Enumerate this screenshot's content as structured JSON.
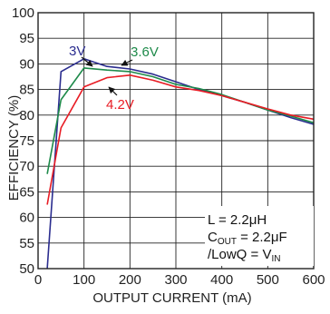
{
  "chart_data": {
    "type": "line",
    "xlabel": "OUTPUT CURRENT (mA)",
    "ylabel": "EFFICIENCY (%)",
    "xlim": [
      0,
      600
    ],
    "ylim": [
      50,
      100
    ],
    "xticks": [
      "0",
      "100",
      "200",
      "300",
      "400",
      "500",
      "600"
    ],
    "xtick_values": [
      0,
      100,
      200,
      300,
      400,
      500,
      600
    ],
    "yticks": [
      "50",
      "55",
      "60",
      "65",
      "70",
      "75",
      "80",
      "85",
      "90",
      "95",
      "100"
    ],
    "ytick_values": [
      50,
      55,
      60,
      65,
      70,
      75,
      80,
      85,
      90,
      95,
      100
    ],
    "grid": true,
    "series": [
      {
        "name": "3V",
        "color": "#2b2d8f",
        "points": [
          [
            20,
            50
          ],
          [
            50,
            88.5
          ],
          [
            100,
            91
          ],
          [
            150,
            89.5
          ],
          [
            200,
            89
          ],
          [
            250,
            88
          ],
          [
            300,
            86.5
          ],
          [
            350,
            85
          ],
          [
            400,
            83.8
          ],
          [
            450,
            82.5
          ],
          [
            500,
            81
          ],
          [
            550,
            79.5
          ],
          [
            600,
            78.2
          ]
        ]
      },
      {
        "name": "3.6V",
        "color": "#1e8a4a",
        "points": [
          [
            20,
            68.5
          ],
          [
            50,
            83
          ],
          [
            100,
            89.2
          ],
          [
            150,
            88.8
          ],
          [
            200,
            88.5
          ],
          [
            250,
            87.5
          ],
          [
            300,
            86
          ],
          [
            350,
            85.2
          ],
          [
            400,
            84
          ],
          [
            450,
            82.5
          ],
          [
            500,
            81
          ],
          [
            550,
            79.8
          ],
          [
            600,
            78.5
          ]
        ]
      },
      {
        "name": "4.2V",
        "color": "#e81c24",
        "points": [
          [
            20,
            62.5
          ],
          [
            50,
            77.5
          ],
          [
            100,
            85.5
          ],
          [
            150,
            87.3
          ],
          [
            200,
            87.8
          ],
          [
            250,
            86.8
          ],
          [
            300,
            85.5
          ],
          [
            350,
            84.8
          ],
          [
            400,
            83.8
          ],
          [
            450,
            82.5
          ],
          [
            500,
            81.2
          ],
          [
            550,
            80
          ],
          [
            600,
            79.2
          ]
        ]
      }
    ],
    "annotations": {
      "inductor": {
        "prefix": "L = 2.2μH"
      },
      "cout": {
        "main": "C",
        "sub": "OUT",
        "rest": " = 2.2μF"
      },
      "lowq": {
        "main": "/LowQ = V",
        "sub": "IN"
      }
    }
  }
}
